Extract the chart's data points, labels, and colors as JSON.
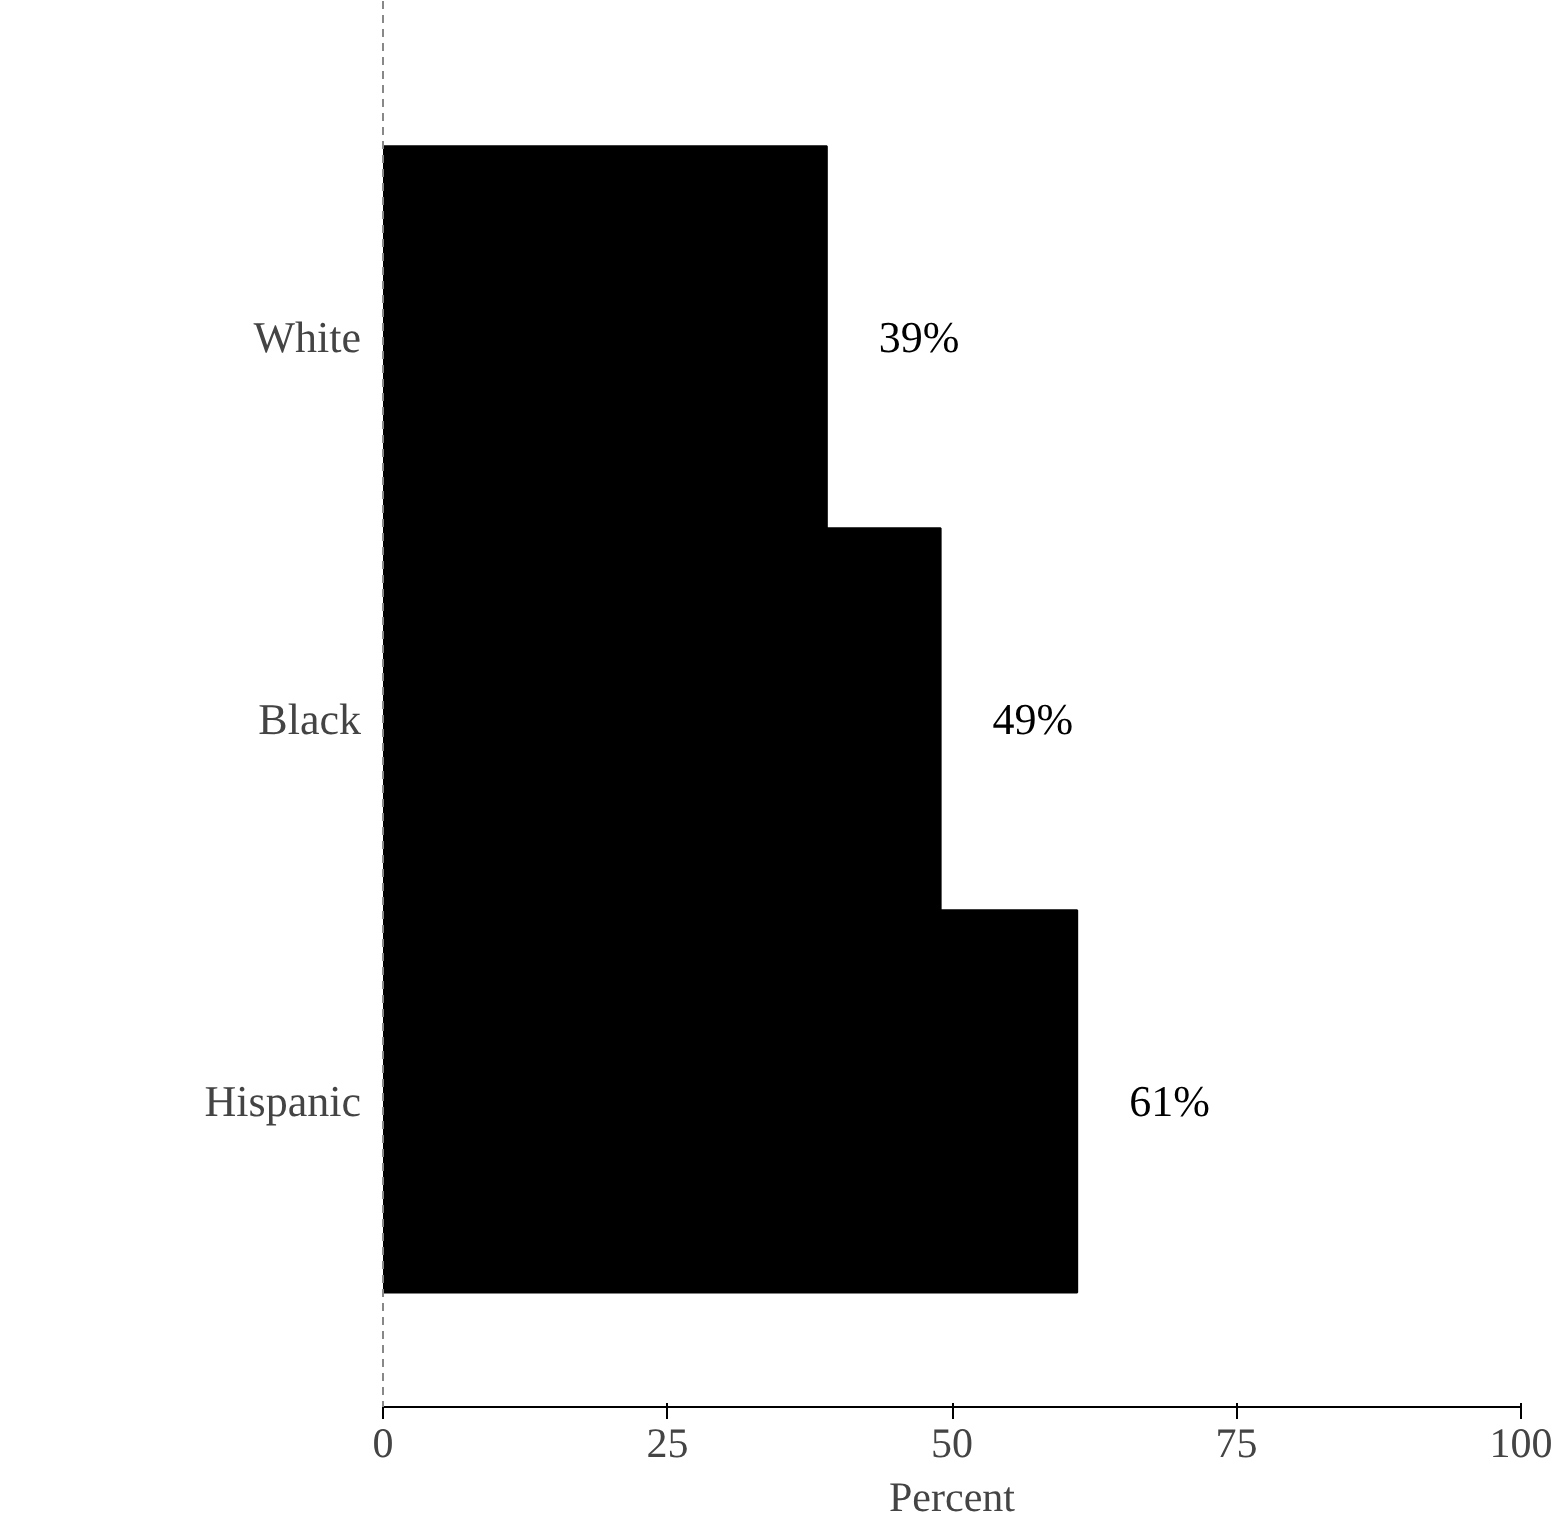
{
  "chart_data": {
    "type": "bar",
    "orientation": "horizontal",
    "xlabel": "Percent",
    "categories": [
      "White",
      "Black",
      "Hispanic"
    ],
    "values": [
      39,
      49,
      61
    ],
    "value_labels": [
      "39%",
      "49%",
      "61%"
    ],
    "color": "#000000",
    "xlim": [
      0,
      100
    ],
    "xticks": [
      0,
      25,
      50,
      75,
      100
    ],
    "grid": false
  }
}
